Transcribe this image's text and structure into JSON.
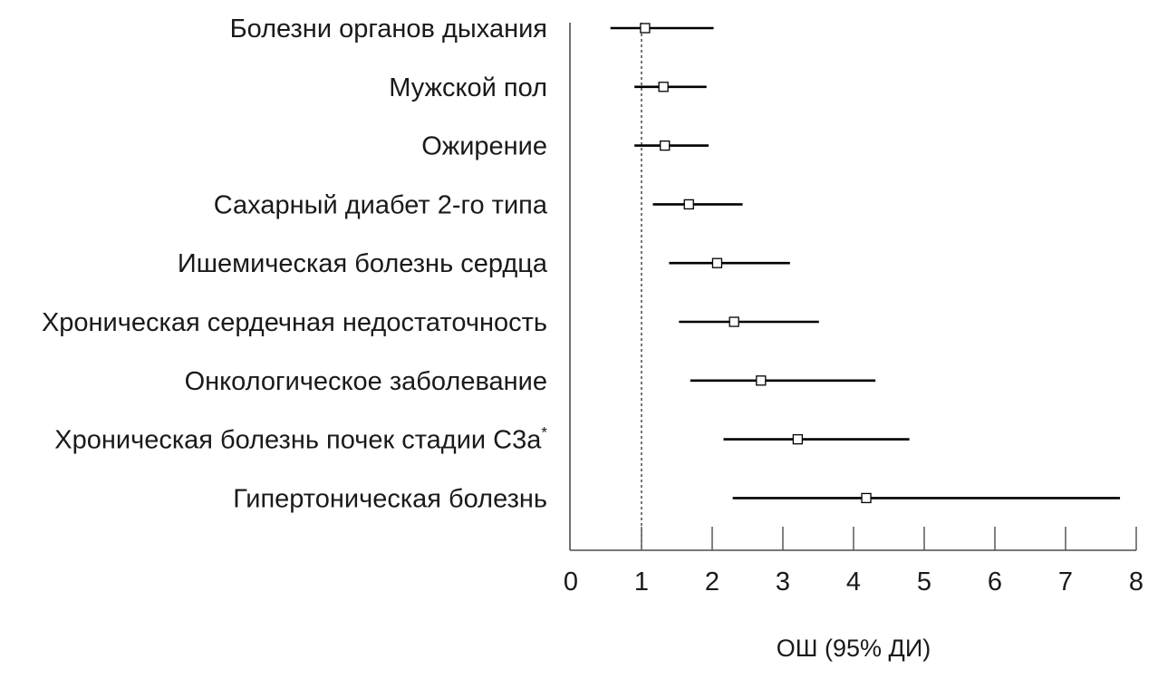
{
  "chart_data": {
    "type": "forest",
    "title": "",
    "xlabel": "ОШ (95% ДИ)",
    "ylabel": "",
    "xlim": [
      0,
      8
    ],
    "xticks": [
      "0",
      "1",
      "2",
      "3",
      "4",
      "5",
      "6",
      "7",
      "8"
    ],
    "reference_line": 1,
    "marker_color": "#ffffff",
    "line_color": "#000000",
    "rows": [
      {
        "label": "Болезни органов дыхания",
        "note": "",
        "or": 1.05,
        "lo": 0.56,
        "hi": 2.02
      },
      {
        "label": "Мужской пол",
        "note": "",
        "or": 1.31,
        "lo": 0.9,
        "hi": 1.92
      },
      {
        "label": "Ожирение",
        "note": "",
        "or": 1.33,
        "lo": 0.9,
        "hi": 1.95
      },
      {
        "label": "Сахарный диабет 2-го типа",
        "note": "",
        "or": 1.67,
        "lo": 1.16,
        "hi": 2.43
      },
      {
        "label": "Ишемическая болезнь сердца",
        "note": "",
        "or": 2.07,
        "lo": 1.39,
        "hi": 3.1
      },
      {
        "label": "Хроническая сердечная недостаточность",
        "note": "",
        "or": 2.31,
        "lo": 1.53,
        "hi": 3.51
      },
      {
        "label": "Онкологическое заболевание",
        "note": "",
        "or": 2.69,
        "lo": 1.69,
        "hi": 4.31
      },
      {
        "label": "Хроническая болезнь почек стадии С3а",
        "note": "*",
        "or": 3.21,
        "lo": 2.16,
        "hi": 4.79
      },
      {
        "label": "Гипертоническая болезнь",
        "note": "",
        "or": 4.18,
        "lo": 2.29,
        "hi": 7.77
      }
    ]
  }
}
